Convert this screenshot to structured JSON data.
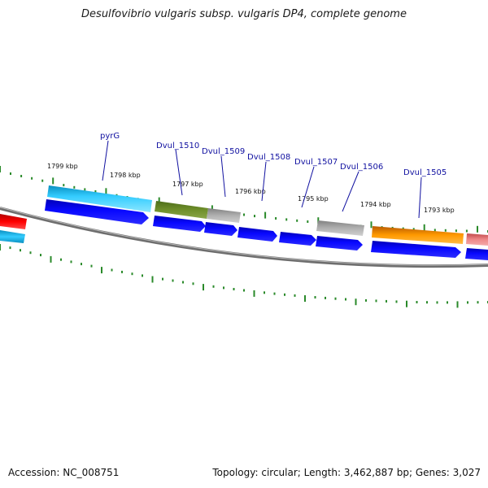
{
  "title": "Desulfovibrio vulgaris subsp. vulgaris DP4, complete genome",
  "footer": {
    "accession": "Accession: NC_008751",
    "summary": "Topology: circular; Length: 3,462,887 bp; Genes: 3,027"
  },
  "colors": {
    "background": "#ffffff",
    "backbone": "#808080",
    "tick": "#2a8a2a",
    "gene_label": "#1010a0",
    "cds": "#0000ee"
  },
  "map_data": {
    "ruler_labels": [
      "1799 kbp",
      "1798 kbp",
      "1797 kbp",
      "1796 kbp",
      "1795 kbp",
      "1794 kbp",
      "1793 kbp"
    ],
    "gene_labels": [
      "pyrG",
      "Dvul_1510",
      "Dvul_1509",
      "Dvul_1508",
      "Dvul_1507",
      "Dvul_1506",
      "Dvul_1505"
    ]
  }
}
